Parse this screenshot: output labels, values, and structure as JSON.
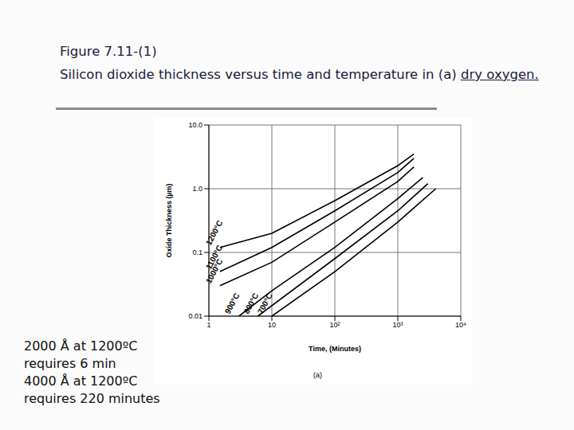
{
  "chart_data": {
    "type": "line",
    "title": "Figure 7.11-(1)",
    "subtitle": "Silicon dioxide thickness versus time and temperature in (a) dry oxygen.",
    "x_label": "Time, (Minutes)",
    "y_label": "Oxide Thickness (µm)",
    "caption": "(a)",
    "annotations": [
      "2000 Å at 1200ºC",
      "requires 6 min",
      "4000 Å at 1200ºC",
      "requires 220 minutes"
    ],
    "log": true,
    "grid": true,
    "xlim": [
      1,
      10000
    ],
    "xticks": [
      1,
      10,
      {
        "value": 100,
        "label": "10²"
      },
      {
        "value": 1000,
        "label": "10³"
      },
      {
        "value": 10000,
        "label": "10⁴"
      }
    ],
    "ylim": [
      0.01,
      10
    ],
    "yticks": [
      0.01,
      0.1,
      {
        "value": 1,
        "label": "1.0"
      },
      {
        "value": 10,
        "label": "10.0"
      }
    ],
    "series": [
      {
        "name": "1200°C",
        "color": "#000000",
        "x": [
          1.5,
          10,
          100,
          1000,
          1800
        ],
        "values": [
          0.12,
          0.2,
          0.65,
          2.3,
          3.5
        ]
      },
      {
        "name": "1100°C",
        "color": "#000000",
        "x": [
          1.5,
          10,
          100,
          1000,
          1800
        ],
        "values": [
          0.05,
          0.12,
          0.45,
          1.8,
          3.0
        ]
      },
      {
        "name": "1000°C",
        "color": "#000000",
        "x": [
          1.5,
          10,
          100,
          1000,
          1800
        ],
        "values": [
          0.03,
          0.07,
          0.3,
          1.3,
          2.2
        ]
      },
      {
        "name": "900°C",
        "color": "#000000",
        "x": [
          3,
          10,
          100,
          1000,
          2500
        ],
        "values": [
          0.01,
          0.025,
          0.12,
          0.7,
          1.5
        ]
      },
      {
        "name": "800°C",
        "color": "#000000",
        "x": [
          6,
          100,
          1000,
          3000
        ],
        "values": [
          0.01,
          0.08,
          0.45,
          1.2
        ]
      },
      {
        "name": "700°C",
        "color": "#000000",
        "x": [
          10,
          100,
          1000,
          4000
        ],
        "values": [
          0.01,
          0.05,
          0.3,
          1.0
        ]
      }
    ]
  }
}
